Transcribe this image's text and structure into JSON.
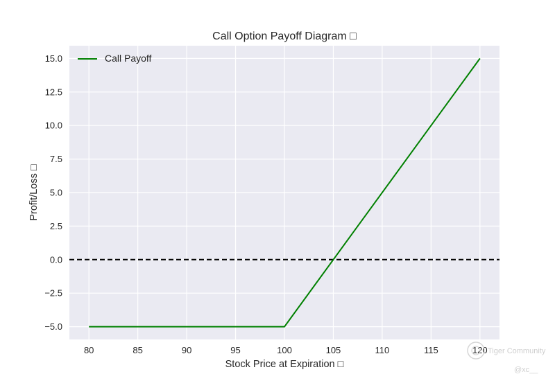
{
  "chart_data": {
    "type": "line",
    "title": "Call Option Payoff Diagram □",
    "xlabel": "Stock Price at Expiration □",
    "ylabel": "Profit/Loss □",
    "xlim": [
      78,
      122
    ],
    "ylim": [
      -5.95,
      15.95
    ],
    "xticks": [
      80,
      85,
      90,
      95,
      100,
      105,
      110,
      115,
      120
    ],
    "yticks": [
      -5.0,
      -2.5,
      0.0,
      2.5,
      5.0,
      7.5,
      10.0,
      12.5,
      15.0
    ],
    "xtick_labels": [
      "80",
      "85",
      "90",
      "95",
      "100",
      "105",
      "110",
      "115",
      "120"
    ],
    "ytick_labels": [
      "−5.0",
      "−2.5",
      "0.0",
      "2.5",
      "5.0",
      "7.5",
      "10.0",
      "12.5",
      "15.0"
    ],
    "grid": true,
    "legend_position": "top-left",
    "series": [
      {
        "name": "Call Payoff",
        "color": "#008000",
        "x": [
          80,
          100,
          120
        ],
        "y": [
          -5,
          -5,
          15
        ]
      }
    ],
    "reference_line": {
      "y": 0,
      "color": "#000000",
      "style": "dashed"
    }
  },
  "watermark": {
    "text": "Tiger Community",
    "handle": "@xc__"
  },
  "colors": {
    "plot_background": "#eaeaf2",
    "grid": "#ffffff"
  }
}
